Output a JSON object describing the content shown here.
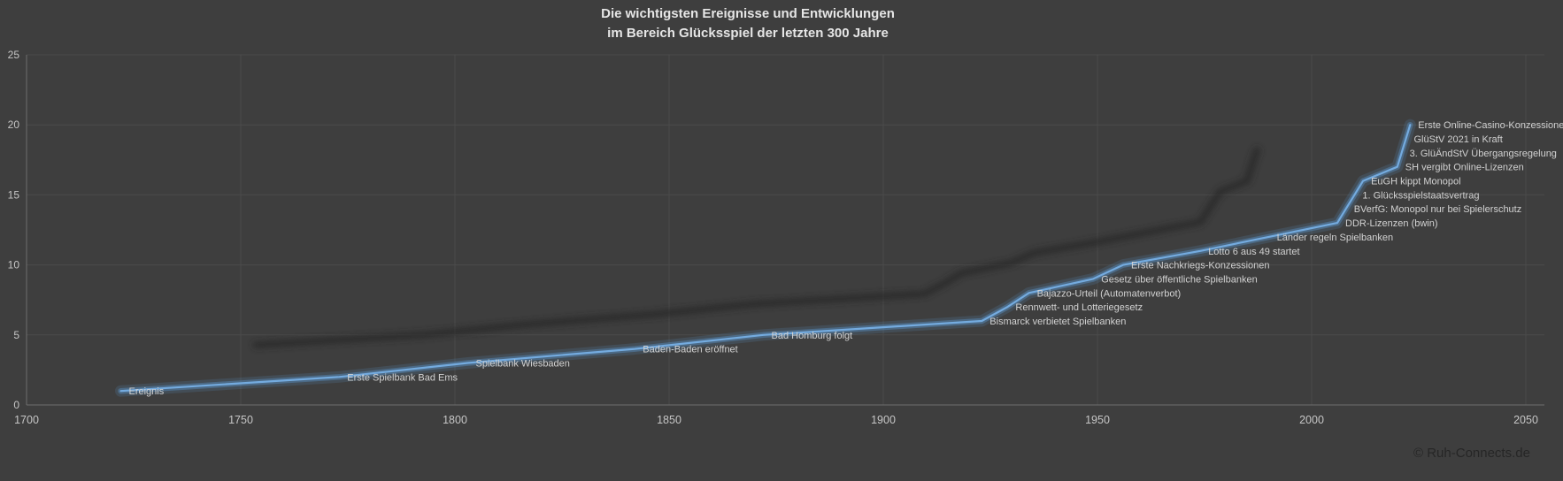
{
  "header": {
    "title_line1": "Die wichtigsten Ereignisse und Entwicklungen",
    "title_line2": "im Bereich Glücksspiel der letzten 300 Jahre"
  },
  "footer": {
    "copyright": "© Ruh-Connects.de"
  },
  "chart_data": {
    "type": "line",
    "title": "Die wichtigsten Ereignisse und Entwicklungen im Bereich Glücksspiel der letzten 300 Jahre",
    "title_lines": [
      "Die wichtigsten Ereignisse und Entwicklungen",
      "im Bereich Glücksspiel der letzten 300 Jahre"
    ],
    "xlabel": "",
    "ylabel": "",
    "legend": "none",
    "grid": true,
    "x_axis": {
      "min": 1700,
      "max": 2050,
      "step": 50,
      "ticks": [
        1700,
        1750,
        1800,
        1850,
        1900,
        1950,
        2000,
        2050
      ]
    },
    "y_axis": {
      "min": 0,
      "max": 25,
      "step": 5,
      "ticks": [
        0,
        5,
        10,
        15,
        20,
        25
      ]
    },
    "series": [
      {
        "name": "Ereignis",
        "points": [
          {
            "x": 1722,
            "y": 1,
            "label": "Ereignis"
          },
          {
            "x": 1773,
            "y": 2,
            "label": "Erste Spielbank Bad Ems"
          },
          {
            "x": 1803,
            "y": 3,
            "label": "Spielbank Wiesbaden"
          },
          {
            "x": 1842,
            "y": 4,
            "label": "Baden-Baden eröffnet"
          },
          {
            "x": 1872,
            "y": 5,
            "label": "Bad Homburg folgt"
          },
          {
            "x": 1923,
            "y": 6,
            "label": "Bismarck verbietet Spielbanken"
          },
          {
            "x": 1929,
            "y": 7,
            "label": "Rennwett- und Lotteriegesetz"
          },
          {
            "x": 1934,
            "y": 8,
            "label": "Bajazzo-Urteil (Automatenverbot)"
          },
          {
            "x": 1949,
            "y": 9,
            "label": "Gesetz über öffentliche Spielbanken"
          },
          {
            "x": 1956,
            "y": 10,
            "label": "Erste Nachkriegs-Konzessionen"
          },
          {
            "x": 1974,
            "y": 11,
            "label": "Lotto 6 aus 49 startet"
          },
          {
            "x": 1990,
            "y": 12,
            "label": "Länder regeln Spielbanken"
          },
          {
            "x": 2006,
            "y": 13,
            "label": "DDR-Lizenzen (bwin)"
          },
          {
            "x": 2008,
            "y": 14,
            "label": "BVerfG: Monopol nur bei Spielerschutz"
          },
          {
            "x": 2010,
            "y": 15,
            "label": "1. Glücksspielstaatsvertrag"
          },
          {
            "x": 2012,
            "y": 16,
            "label": "EuGH kippt Monopol"
          },
          {
            "x": 2020,
            "y": 17,
            "label": "SH vergibt Online-Lizenzen"
          },
          {
            "x": 2021,
            "y": 18,
            "label": "3. GlüÄndStV Übergangsregelung"
          },
          {
            "x": 2022,
            "y": 19,
            "label": "GlüStV 2021 in Kraft"
          },
          {
            "x": 2023,
            "y": 20,
            "label": "Erste Online-Casino-Konzessionen"
          }
        ]
      }
    ],
    "style": {
      "background": "#3e3e3e",
      "line_color": "#5b9bd5",
      "line_core_color": "#74abdf",
      "shadow_color": "#272727",
      "label_color": "#d2d2d2",
      "axis_text_color": "#c6c6c6",
      "grid_color": "#4b4b4b",
      "axis_line_color": "#6e6e6e",
      "title_color": "#e6e6e6",
      "copyright_color": "#262626"
    }
  }
}
